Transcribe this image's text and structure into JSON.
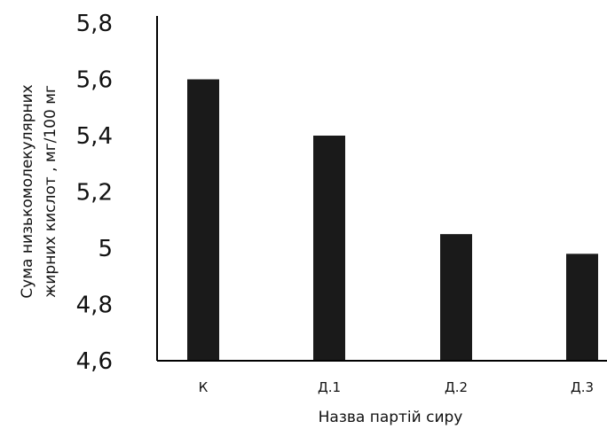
{
  "chart_data": {
    "type": "bar",
    "categories": [
      "К",
      "Д.1",
      "Д.2",
      "Д.3"
    ],
    "values": [
      5.6,
      5.4,
      5.05,
      4.98
    ],
    "title": "",
    "xlabel": "Назва партій сиру",
    "ylabel_lines": [
      "Сума низькомолекулярних",
      "жирних кислот , мг/100 мг"
    ],
    "ylim": [
      4.6,
      5.8
    ],
    "yticks": [
      4.6,
      4.8,
      5,
      5.2,
      5.4,
      5.6,
      5.8
    ],
    "ytick_labels": [
      "4,6",
      "4,8",
      "5",
      "5,2",
      "5,4",
      "5,6",
      "5,8"
    ],
    "grid": false,
    "bar_color": "#1a1a1a",
    "axis_color": "#000000"
  }
}
